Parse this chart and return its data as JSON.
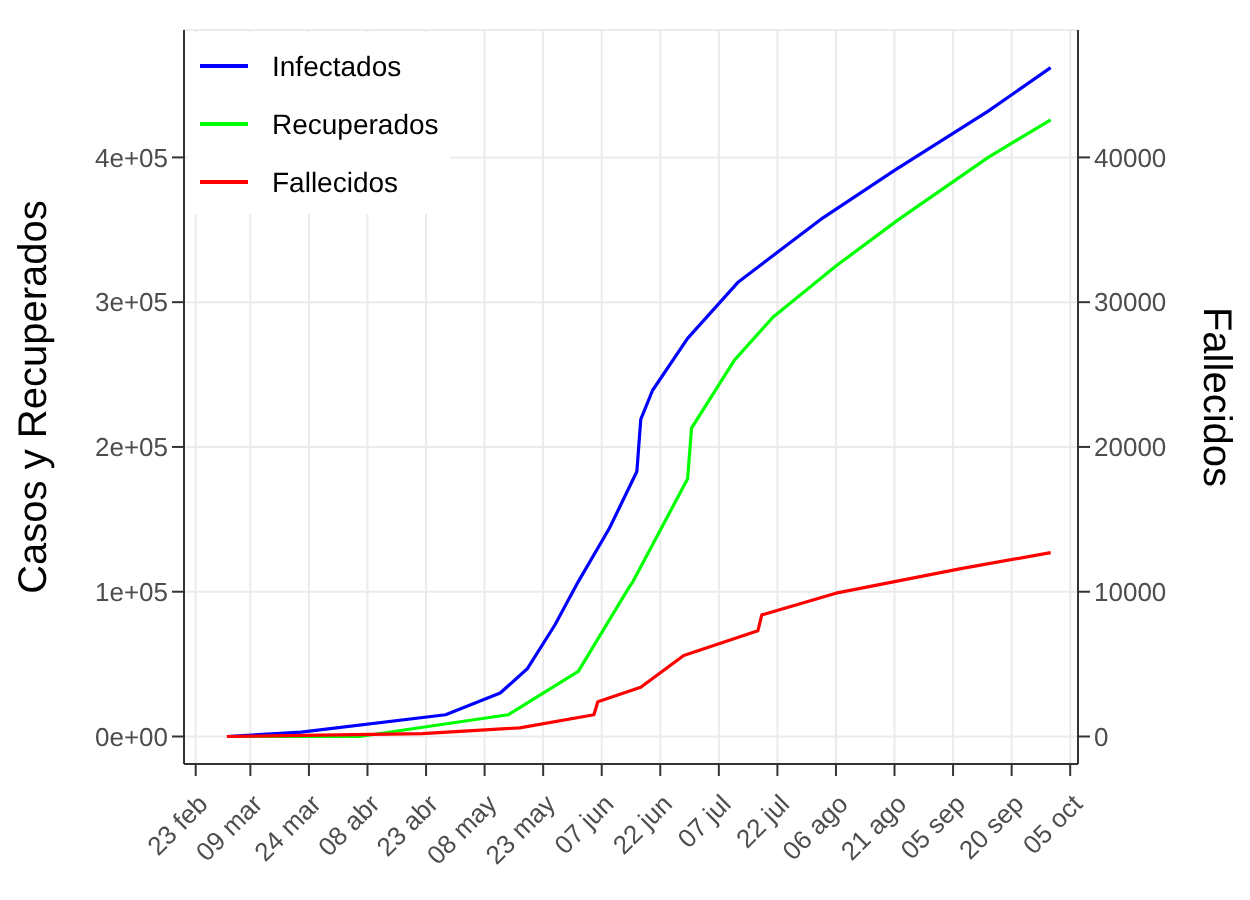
{
  "chart_data": {
    "type": "line",
    "xlabel": null,
    "ylabel": "Casos y Recuperados",
    "y2label": "Fallecidos",
    "xlim": [
      "--02-20",
      "--10-07"
    ],
    "xticks": [
      {
        "value": "--02-23",
        "label": "23 feb"
      },
      {
        "value": "--03-09",
        "label": "09 mar"
      },
      {
        "value": "--03-24",
        "label": "24 mar"
      },
      {
        "value": "--04-08",
        "label": "08 abr"
      },
      {
        "value": "--04-23",
        "label": "23 abr"
      },
      {
        "value": "--05-08",
        "label": "08 may"
      },
      {
        "value": "--05-23",
        "label": "23 may"
      },
      {
        "value": "--06-07",
        "label": "07 jun"
      },
      {
        "value": "--06-22",
        "label": "22 jun"
      },
      {
        "value": "--07-07",
        "label": "07 jul"
      },
      {
        "value": "--07-22",
        "label": "22 jul"
      },
      {
        "value": "--08-06",
        "label": "06 ago"
      },
      {
        "value": "--08-21",
        "label": "21 ago"
      },
      {
        "value": "--09-05",
        "label": "05 sep"
      },
      {
        "value": "--09-20",
        "label": "20 sep"
      },
      {
        "value": "--10-05",
        "label": "05 oct"
      }
    ],
    "ylim": [
      -19000,
      488000
    ],
    "yticks": [
      {
        "value": 0,
        "label": "0e+00"
      },
      {
        "value": 100000,
        "label": "1e+05"
      },
      {
        "value": 200000,
        "label": "2e+05"
      },
      {
        "value": 300000,
        "label": "3e+05"
      },
      {
        "value": 400000,
        "label": "4e+05"
      }
    ],
    "y2lim": [
      -1900,
      48800
    ],
    "y2ticks": [
      0,
      10000,
      20000,
      30000,
      40000
    ],
    "grid": true,
    "legend": "top left",
    "marker": "none",
    "line_style": "solid",
    "series": [
      {
        "name": "Infectados",
        "color": "#0000ff",
        "x": [
          "--03-03",
          "--03-22",
          "--04-28",
          "--05-12",
          "--05-19",
          "--05-26",
          "--06-01",
          "--06-09",
          "--06-16",
          "--06-17",
          "--06-20",
          "--06-29",
          "--07-12",
          "--08-02",
          "--08-21",
          "--09-14",
          "--09-30"
        ],
        "values": [
          0,
          3000,
          15000,
          30000,
          47000,
          77000,
          107000,
          144000,
          183000,
          219000,
          239000,
          275000,
          314000,
          357000,
          391000,
          432000,
          462000
        ]
      },
      {
        "name": "Recuperados",
        "color": "#00ff00",
        "x": [
          "--03-03",
          "--04-06",
          "--05-14",
          "--06-01",
          "--06-14",
          "--06-15",
          "--06-29",
          "--06-30",
          "--07-11",
          "--07-21",
          "--08-06",
          "--08-22",
          "--09-14",
          "--09-30"
        ],
        "values": [
          0,
          0,
          15000,
          45000,
          103000,
          107000,
          178000,
          213000,
          260000,
          290000,
          325000,
          357000,
          400000,
          426000
        ]
      },
      {
        "name": "Fallecidos",
        "color": "#ff0000",
        "axis": "y2",
        "x": [
          "--03-03",
          "--04-22",
          "--05-17",
          "--06-05",
          "--06-06",
          "--06-17",
          "--06-28",
          "--07-17",
          "--07-18",
          "--08-06",
          "--09-07",
          "--09-30"
        ],
        "values": [
          0,
          200,
          600,
          1500,
          2400,
          3400,
          5600,
          7300,
          8400,
          9900,
          11600,
          12700
        ]
      }
    ]
  }
}
